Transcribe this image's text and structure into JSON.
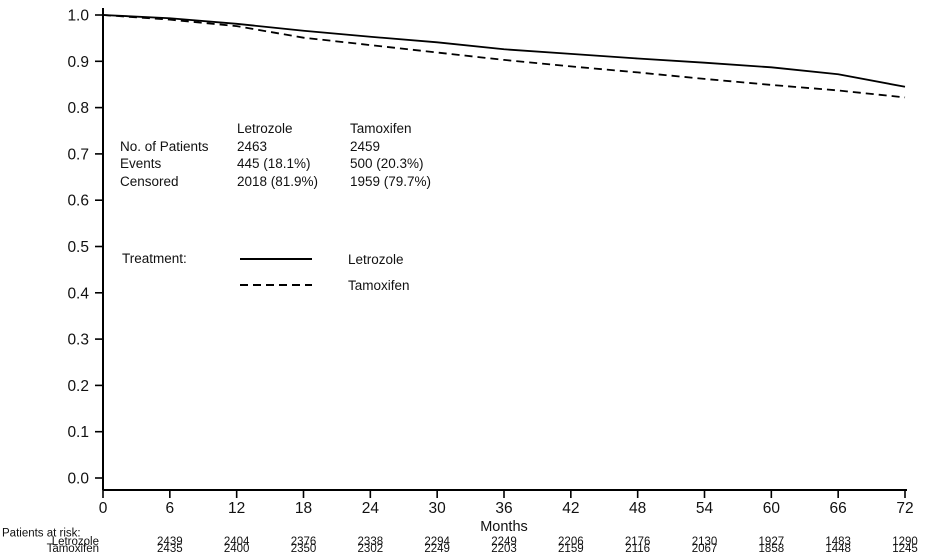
{
  "chart_data": {
    "type": "line",
    "title": "",
    "xlabel": "Months",
    "ylabel": "",
    "xlim": [
      0,
      72
    ],
    "ylim": [
      0.0,
      1.0
    ],
    "grid": false,
    "line_color": "#000000",
    "x_ticks": [
      0,
      6,
      12,
      18,
      24,
      30,
      36,
      42,
      48,
      54,
      60,
      66,
      72
    ],
    "y_ticks": [
      0.0,
      0.1,
      0.2,
      0.3,
      0.4,
      0.5,
      0.6,
      0.7,
      0.8,
      0.9,
      1.0
    ],
    "x": [
      0,
      6,
      12,
      18,
      24,
      30,
      36,
      42,
      48,
      54,
      60,
      66,
      72
    ],
    "series": [
      {
        "name": "Letrozole",
        "style": "solid",
        "values": [
          1.0,
          0.993,
          0.981,
          0.966,
          0.953,
          0.941,
          0.926,
          0.916,
          0.906,
          0.897,
          0.887,
          0.872,
          0.845
        ]
      },
      {
        "name": "Tamoxifen",
        "style": "dashed",
        "values": [
          1.0,
          0.99,
          0.976,
          0.951,
          0.935,
          0.919,
          0.903,
          0.889,
          0.876,
          0.862,
          0.849,
          0.837,
          0.822
        ]
      }
    ],
    "legend": {
      "title": "Treatment:",
      "position": "inside-left",
      "entries": [
        {
          "label": "Letrozole",
          "style": "solid"
        },
        {
          "label": "Tamoxifen",
          "style": "dashed"
        }
      ]
    },
    "inset_table": {
      "col_headers": [
        "Letrozole",
        "Tamoxifen"
      ],
      "rows": [
        {
          "label": "No. of Patients",
          "letrozole": "2463",
          "tamoxifen": "2459"
        },
        {
          "label": "Events",
          "letrozole": "445 (18.1%)",
          "tamoxifen": "500 (20.3%)"
        },
        {
          "label": "Censored",
          "letrozole": "2018 (81.9%)",
          "tamoxifen": "1959 (79.7%)"
        }
      ]
    },
    "at_risk": {
      "title": "Patients at risk:",
      "months": [
        6,
        12,
        18,
        24,
        30,
        36,
        42,
        48,
        54,
        60,
        66,
        72
      ],
      "rows": [
        {
          "name": "Letrozole",
          "counts": [
            2439,
            2404,
            2376,
            2338,
            2294,
            2249,
            2206,
            2176,
            2130,
            1927,
            1483,
            1290
          ]
        },
        {
          "name": "Tamoxifen",
          "counts": [
            2435,
            2400,
            2350,
            2302,
            2249,
            2203,
            2159,
            2116,
            2067,
            1858,
            1448,
            1245
          ]
        }
      ]
    }
  }
}
